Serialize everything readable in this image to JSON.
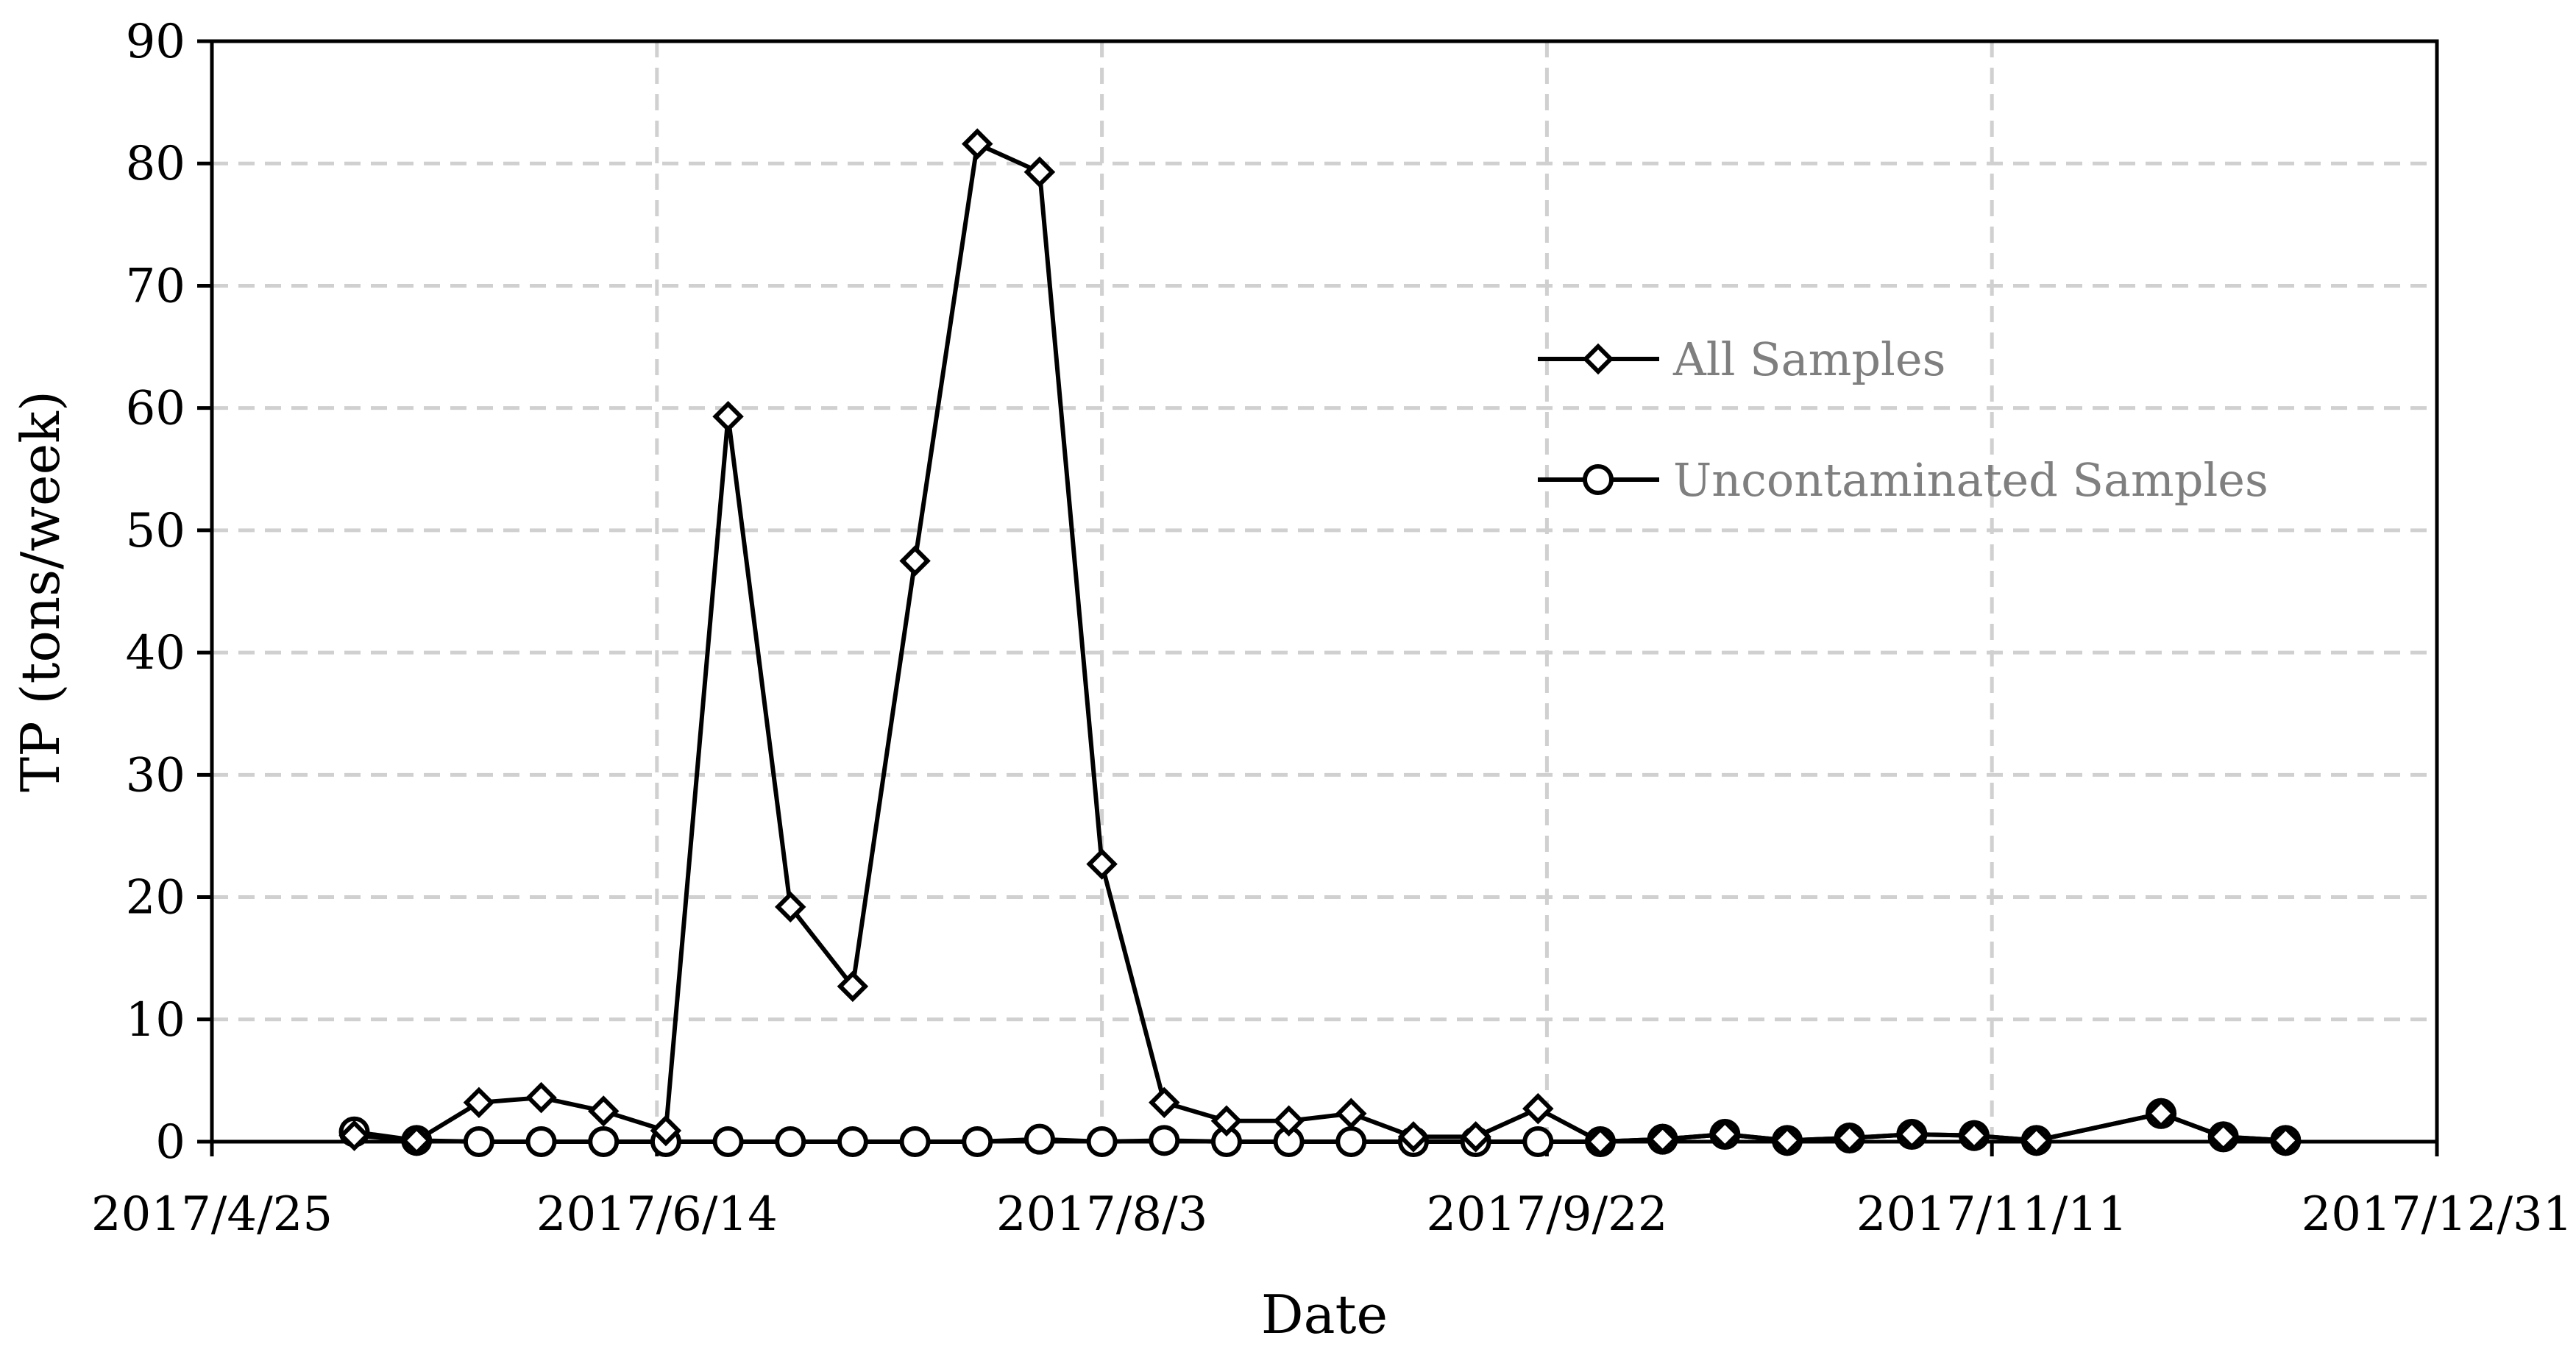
{
  "chart_data": {
    "type": "line",
    "title": "",
    "xlabel": "Date",
    "ylabel": "TP (tons/week)",
    "xlim": [
      "2017-04-25",
      "2017-12-31"
    ],
    "ylim": [
      0,
      90
    ],
    "x_ticks": [
      "2017/4/25",
      "2017/6/14",
      "2017/8/3",
      "2017/9/22",
      "2017/11/11",
      "2017/12/31"
    ],
    "y_ticks": [
      0,
      10,
      20,
      30,
      40,
      50,
      60,
      70,
      80,
      90
    ],
    "grid": true,
    "legend_position": "right",
    "series": [
      {
        "name": "All Samples",
        "marker": "diamond",
        "color": "#000000",
        "points": [
          [
            "2017-05-11",
            0.5
          ],
          [
            "2017-05-18",
            0.1
          ],
          [
            "2017-05-25",
            3.2
          ],
          [
            "2017-06-01",
            3.6
          ],
          [
            "2017-06-08",
            2.5
          ],
          [
            "2017-06-15",
            0.9
          ],
          [
            "2017-06-22",
            59.3
          ],
          [
            "2017-06-29",
            19.2
          ],
          [
            "2017-07-06",
            12.7
          ],
          [
            "2017-07-13",
            47.5
          ],
          [
            "2017-07-20",
            81.6
          ],
          [
            "2017-07-27",
            79.3
          ],
          [
            "2017-08-03",
            22.7
          ],
          [
            "2017-08-10",
            3.2
          ],
          [
            "2017-08-17",
            1.7
          ],
          [
            "2017-08-24",
            1.7
          ],
          [
            "2017-08-31",
            2.3
          ],
          [
            "2017-09-07",
            0.4
          ],
          [
            "2017-09-14",
            0.4
          ],
          [
            "2017-09-21",
            2.7
          ],
          [
            "2017-09-28",
            0.0
          ],
          [
            "2017-10-05",
            0.2
          ],
          [
            "2017-10-12",
            0.6
          ],
          [
            "2017-10-19",
            0.1
          ],
          [
            "2017-10-26",
            0.3
          ],
          [
            "2017-11-02",
            0.6
          ],
          [
            "2017-11-09",
            0.5
          ],
          [
            "2017-11-16",
            0.1
          ],
          [
            "2017-11-30",
            2.3
          ],
          [
            "2017-12-07",
            0.4
          ],
          [
            "2017-12-14",
            0.1
          ]
        ]
      },
      {
        "name": "Uncontaminated Samples",
        "marker": "circle",
        "color": "#000000",
        "points": [
          [
            "2017-05-11",
            0.8
          ],
          [
            "2017-05-18",
            0.1
          ],
          [
            "2017-05-25",
            0.0
          ],
          [
            "2017-06-01",
            0.0
          ],
          [
            "2017-06-08",
            0.0
          ],
          [
            "2017-06-15",
            0.0
          ],
          [
            "2017-06-22",
            0.0
          ],
          [
            "2017-06-29",
            0.0
          ],
          [
            "2017-07-06",
            0.0
          ],
          [
            "2017-07-13",
            0.0
          ],
          [
            "2017-07-20",
            0.0
          ],
          [
            "2017-07-27",
            0.2
          ],
          [
            "2017-08-03",
            0.0
          ],
          [
            "2017-08-10",
            0.1
          ],
          [
            "2017-08-17",
            0.0
          ],
          [
            "2017-08-24",
            0.0
          ],
          [
            "2017-08-31",
            0.0
          ],
          [
            "2017-09-07",
            0.0
          ],
          [
            "2017-09-14",
            0.0
          ],
          [
            "2017-09-21",
            0.0
          ],
          [
            "2017-09-28",
            0.0
          ],
          [
            "2017-10-05",
            0.2
          ],
          [
            "2017-10-12",
            0.6
          ],
          [
            "2017-10-19",
            0.1
          ],
          [
            "2017-10-26",
            0.3
          ],
          [
            "2017-11-02",
            0.6
          ],
          [
            "2017-11-09",
            0.5
          ],
          [
            "2017-11-16",
            0.1
          ],
          [
            "2017-11-30",
            2.3
          ],
          [
            "2017-12-07",
            0.4
          ],
          [
            "2017-12-14",
            0.1
          ]
        ]
      }
    ]
  }
}
